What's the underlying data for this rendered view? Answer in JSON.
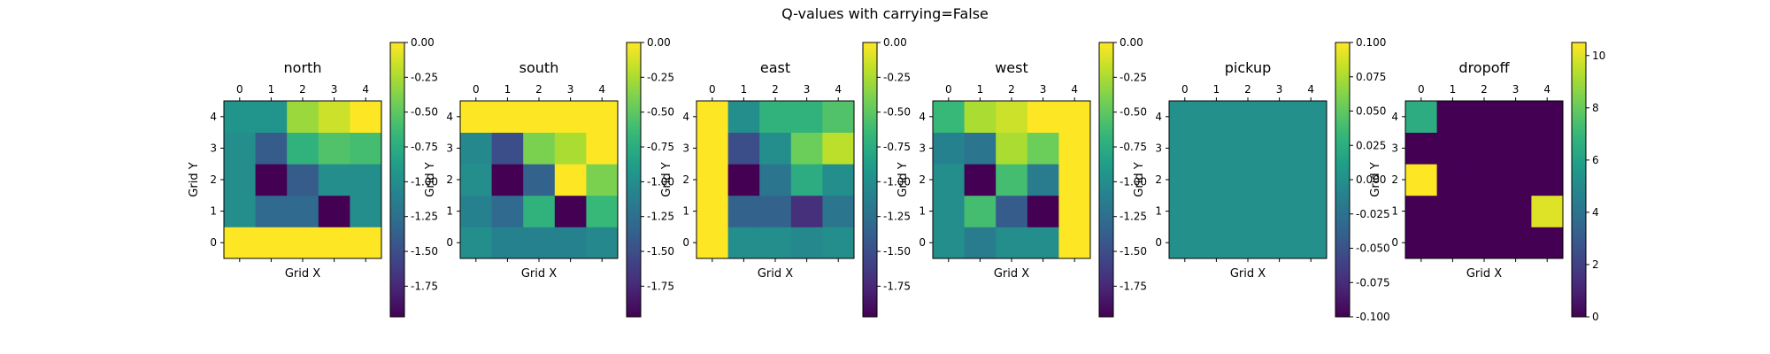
{
  "figure": {
    "title": "Q-values with carrying=False"
  },
  "chart_data": [
    {
      "type": "heatmap",
      "title": "north",
      "xlabel": "Grid X",
      "ylabel": "Grid Y",
      "x_ticks": [
        "0",
        "1",
        "2",
        "3",
        "4"
      ],
      "y_ticks": [
        "0",
        "1",
        "2",
        "3",
        "4"
      ],
      "x_axis_position": "top",
      "y_origin": "bottom",
      "colormap": "viridis",
      "color_range": [
        -1.97,
        0.0
      ],
      "colorbar_ticks": [
        "0.00",
        "-0.25",
        "-0.50",
        "-0.75",
        "-1.00",
        "-1.25",
        "-1.50",
        "-1.75"
      ],
      "colorbar_tick_values": [
        0,
        -0.25,
        -0.5,
        -0.75,
        -1.0,
        -1.25,
        -1.5,
        -1.75
      ],
      "values": [
        [
          0.0,
          0.0,
          0.0,
          0.0,
          0.0
        ],
        [
          -1.0,
          -1.3,
          -1.3,
          -1.97,
          -1.0
        ],
        [
          -1.0,
          -1.97,
          -1.4,
          -1.0,
          -1.0
        ],
        [
          -1.0,
          -1.4,
          -0.7,
          -0.55,
          -0.6
        ],
        [
          -0.95,
          -0.95,
          -0.3,
          -0.15,
          0.0
        ]
      ]
    },
    {
      "type": "heatmap",
      "title": "south",
      "xlabel": "Grid X",
      "ylabel": "Grid Y",
      "x_ticks": [
        "0",
        "1",
        "2",
        "3",
        "4"
      ],
      "y_ticks": [
        "0",
        "1",
        "2",
        "3",
        "4"
      ],
      "x_axis_position": "top",
      "y_origin": "bottom",
      "colormap": "viridis",
      "color_range": [
        -1.97,
        0.0
      ],
      "colorbar_ticks": [
        "0.00",
        "-0.25",
        "-0.50",
        "-0.75",
        "-1.00",
        "-1.25",
        "-1.50",
        "-1.75"
      ],
      "colorbar_tick_values": [
        0,
        -0.25,
        -0.5,
        -0.75,
        -1.0,
        -1.25,
        -1.5,
        -1.75
      ],
      "values": [
        [
          -1.0,
          -1.1,
          -1.1,
          -1.1,
          -1.05
        ],
        [
          -1.1,
          -1.3,
          -0.7,
          -1.97,
          -0.65
        ],
        [
          -1.0,
          -1.97,
          -1.35,
          0.0,
          -0.4
        ],
        [
          -1.05,
          -1.5,
          -0.4,
          -0.25,
          0.0
        ],
        [
          0.0,
          0.0,
          0.0,
          0.0,
          0.0
        ]
      ]
    },
    {
      "type": "heatmap",
      "title": "east",
      "xlabel": "Grid X",
      "ylabel": "Grid Y",
      "x_ticks": [
        "0",
        "1",
        "2",
        "3",
        "4"
      ],
      "y_ticks": [
        "0",
        "1",
        "2",
        "3",
        "4"
      ],
      "x_axis_position": "top",
      "y_origin": "bottom",
      "colormap": "viridis",
      "color_range": [
        -1.97,
        0.0
      ],
      "colorbar_ticks": [
        "0.00",
        "-0.25",
        "-0.50",
        "-0.75",
        "-1.00",
        "-1.25",
        "-1.50",
        "-1.75"
      ],
      "colorbar_tick_values": [
        0,
        -0.25,
        -0.5,
        -0.75,
        -1.0,
        -1.25,
        -1.5,
        -1.75
      ],
      "values": [
        [
          0.0,
          -1.0,
          -1.0,
          -1.05,
          -1.0
        ],
        [
          0.0,
          -1.35,
          -1.35,
          -1.7,
          -1.2
        ],
        [
          0.0,
          -1.97,
          -1.2,
          -0.75,
          -1.0
        ],
        [
          0.0,
          -1.5,
          -1.0,
          -0.45,
          -0.2
        ],
        [
          0.0,
          -1.0,
          -0.7,
          -0.7,
          -0.55
        ]
      ]
    },
    {
      "type": "heatmap",
      "title": "west",
      "xlabel": "Grid X",
      "ylabel": "Grid Y",
      "x_ticks": [
        "0",
        "1",
        "2",
        "3",
        "4"
      ],
      "y_ticks": [
        "0",
        "1",
        "2",
        "3",
        "4"
      ],
      "x_axis_position": "top",
      "y_origin": "bottom",
      "colormap": "viridis",
      "color_range": [
        -1.97,
        0.0
      ],
      "colorbar_ticks": [
        "0.00",
        "-0.25",
        "-0.50",
        "-0.75",
        "-1.00",
        "-1.25",
        "-1.50",
        "-1.75"
      ],
      "colorbar_tick_values": [
        0,
        -0.25,
        -0.5,
        -0.75,
        -1.0,
        -1.25,
        -1.5,
        -1.75
      ],
      "values": [
        [
          -1.0,
          -1.15,
          -1.0,
          -1.0,
          0.0
        ],
        [
          -1.0,
          -0.6,
          -1.4,
          -1.97,
          0.0
        ],
        [
          -1.0,
          -1.97,
          -0.6,
          -1.15,
          0.0
        ],
        [
          -1.1,
          -1.2,
          -0.25,
          -0.45,
          0.0
        ],
        [
          -0.65,
          -0.25,
          -0.15,
          0.0,
          0.0
        ]
      ]
    },
    {
      "type": "heatmap",
      "title": "pickup",
      "xlabel": "Grid X",
      "ylabel": "Grid Y",
      "x_ticks": [
        "0",
        "1",
        "2",
        "3",
        "4"
      ],
      "y_ticks": [
        "0",
        "1",
        "2",
        "3",
        "4"
      ],
      "x_axis_position": "top",
      "y_origin": "bottom",
      "colormap": "viridis",
      "color_range": [
        -0.1,
        0.1
      ],
      "colorbar_ticks": [
        "0.100",
        "0.075",
        "0.050",
        "0.025",
        "0.000",
        "-0.025",
        "-0.050",
        "-0.075",
        "-0.100"
      ],
      "colorbar_tick_values": [
        0.1,
        0.075,
        0.05,
        0.025,
        0.0,
        -0.025,
        -0.05,
        -0.075,
        -0.1
      ],
      "values": [
        [
          0,
          0,
          0,
          0,
          0
        ],
        [
          0,
          0,
          0,
          0,
          0
        ],
        [
          0,
          0,
          0,
          0,
          0
        ],
        [
          0,
          0,
          0,
          0,
          0
        ],
        [
          0,
          0,
          0,
          0,
          0
        ]
      ]
    },
    {
      "type": "heatmap",
      "title": "dropoff",
      "xlabel": "Grid X",
      "ylabel": "Grid Y",
      "x_ticks": [
        "0",
        "1",
        "2",
        "3",
        "4"
      ],
      "y_ticks": [
        "0",
        "1",
        "2",
        "3",
        "4"
      ],
      "x_axis_position": "top",
      "y_origin": "bottom",
      "colormap": "viridis",
      "color_range": [
        0,
        10.5
      ],
      "colorbar_ticks": [
        "10",
        "8",
        "6",
        "4",
        "2",
        "0"
      ],
      "colorbar_tick_values": [
        10,
        8,
        6,
        4,
        2,
        0
      ],
      "values": [
        [
          0,
          0,
          0,
          0,
          0
        ],
        [
          0,
          0,
          0,
          0,
          10
        ],
        [
          10.5,
          0,
          0,
          0,
          0
        ],
        [
          0,
          0,
          0,
          0,
          0
        ],
        [
          6.5,
          0,
          0,
          0,
          0
        ]
      ]
    }
  ]
}
